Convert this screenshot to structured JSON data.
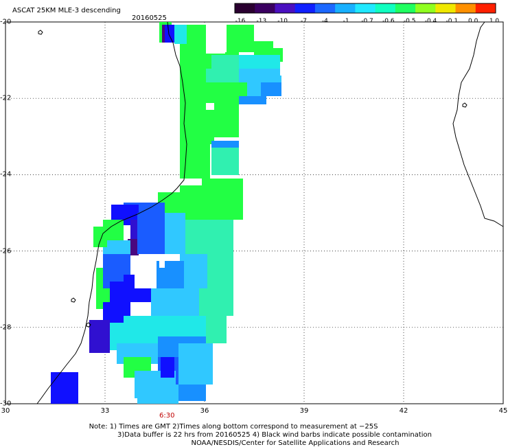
{
  "header": {
    "title": "ASCAT 25KM MLE-3 descending",
    "date": "20160525"
  },
  "colorbar": {
    "ticks": [
      "-16",
      "-13",
      "-10",
      "-7",
      "-4",
      "-1",
      "-0.7",
      "-0.6",
      "-0.5",
      "-0.4",
      "-0.1",
      "0.0",
      "1.0"
    ],
    "colors": [
      "#2a0030",
      "#3a0060",
      "#4a10c0",
      "#1020ff",
      "#1c68ff",
      "#18b0ff",
      "#20e8ff",
      "#10ffc0",
      "#20ff60",
      "#90ff20",
      "#f0e800",
      "#ff9000",
      "#ff2000"
    ]
  },
  "axes": {
    "lon_ticks": [
      "30",
      "33",
      "36",
      "39",
      "42",
      "45"
    ],
    "lat_ticks": [
      "-20",
      "-22",
      "-24",
      "-26",
      "-28",
      "-30"
    ],
    "lon_range": [
      30,
      45
    ],
    "lat_range": [
      -30,
      -20
    ]
  },
  "time_label": "6:30",
  "notes": {
    "line1": "Note: 1) Times are GMT 2)Times along bottom correspond to measurement at −25S",
    "line2": "3)Data buffer is 22 hrs from 20160525 4) Black wind barbs indicate possible contamination",
    "line3": "NOAA/NESDIS/Center for Satellite Applications and Research"
  },
  "palette": {
    "green": "#22ff44",
    "green2": "#30f060",
    "teal": "#30f0b0",
    "cyan": "#20e8e8",
    "lightblue": "#30c8ff",
    "midblue": "#1890ff",
    "blue": "#1a5cff",
    "deepblue": "#1010ff",
    "indigo": "#3010d0",
    "violet": "#4a0880",
    "black": "#200020"
  }
}
